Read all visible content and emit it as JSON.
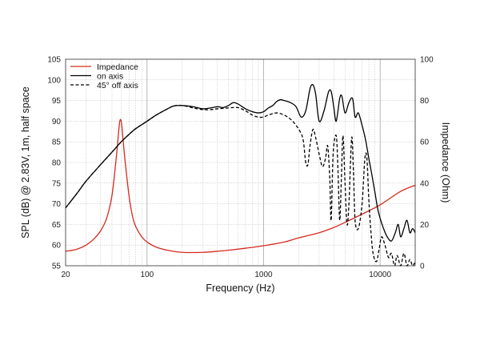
{
  "chart_data": {
    "type": "line",
    "title": "",
    "xlabel": "Frequency (Hz)",
    "ylabel": "SPL (dB) @ 2.83V, 1m, half space",
    "y2label": "Impedance (Ohm)",
    "xscale": "log",
    "xlim": [
      20,
      20000
    ],
    "ylim": [
      55,
      105
    ],
    "y2lim": [
      0,
      100
    ],
    "grid": true,
    "legend_position": "top-left",
    "x_tick_labels": [
      "20",
      "100",
      "1000",
      "10000"
    ],
    "y_tick_labels": [
      "55",
      "60",
      "65",
      "70",
      "75",
      "80",
      "85",
      "90",
      "95",
      "100",
      "105"
    ],
    "y2_tick_labels": [
      "0",
      "20",
      "40",
      "60",
      "80",
      "100"
    ],
    "series": [
      {
        "name": "Impedance",
        "axis": "right",
        "color": "#d42a1e",
        "dash": "solid",
        "points": [
          [
            20,
            7
          ],
          [
            25,
            8
          ],
          [
            30,
            10
          ],
          [
            35,
            13
          ],
          [
            40,
            17
          ],
          [
            45,
            23
          ],
          [
            50,
            34
          ],
          [
            55,
            55
          ],
          [
            58,
            69
          ],
          [
            60,
            70
          ],
          [
            62,
            62
          ],
          [
            65,
            50
          ],
          [
            70,
            34
          ],
          [
            75,
            24
          ],
          [
            80,
            19
          ],
          [
            90,
            14
          ],
          [
            100,
            11.5
          ],
          [
            120,
            9
          ],
          [
            150,
            7.5
          ],
          [
            200,
            6.5
          ],
          [
            300,
            6.5
          ],
          [
            400,
            7
          ],
          [
            500,
            7.5
          ],
          [
            700,
            8.5
          ],
          [
            1000,
            9.7
          ],
          [
            1500,
            11.5
          ],
          [
            2000,
            13.5
          ],
          [
            3000,
            16
          ],
          [
            4000,
            18.5
          ],
          [
            5000,
            21
          ],
          [
            7000,
            25
          ],
          [
            10000,
            29.5
          ],
          [
            15000,
            36
          ],
          [
            20000,
            39
          ]
        ]
      },
      {
        "name": "on axis",
        "axis": "left",
        "color": "#000000",
        "dash": "solid",
        "points": [
          [
            20,
            69
          ],
          [
            25,
            72.5
          ],
          [
            30,
            75.5
          ],
          [
            40,
            79.5
          ],
          [
            50,
            82.5
          ],
          [
            60,
            85
          ],
          [
            70,
            86.8
          ],
          [
            80,
            88.2
          ],
          [
            100,
            90
          ],
          [
            120,
            91.5
          ],
          [
            150,
            93
          ],
          [
            170,
            93.7
          ],
          [
            200,
            93.8
          ],
          [
            250,
            93.5
          ],
          [
            300,
            93
          ],
          [
            350,
            93.2
          ],
          [
            400,
            93.5
          ],
          [
            450,
            93.3
          ],
          [
            500,
            93.8
          ],
          [
            550,
            94.5
          ],
          [
            600,
            94.2
          ],
          [
            700,
            93
          ],
          [
            800,
            92.3
          ],
          [
            900,
            92
          ],
          [
            1000,
            92.3
          ],
          [
            1100,
            93.2
          ],
          [
            1200,
            93.8
          ],
          [
            1300,
            94.8
          ],
          [
            1400,
            95.2
          ],
          [
            1500,
            95
          ],
          [
            1700,
            94.5
          ],
          [
            1900,
            93.5
          ],
          [
            2100,
            91
          ],
          [
            2300,
            92.5
          ],
          [
            2500,
            97.8
          ],
          [
            2650,
            98.8
          ],
          [
            2800,
            96.5
          ],
          [
            3000,
            90
          ],
          [
            3300,
            92.5
          ],
          [
            3600,
            97
          ],
          [
            3800,
            97.2
          ],
          [
            4000,
            93.5
          ],
          [
            4200,
            90
          ],
          [
            4500,
            95.5
          ],
          [
            4700,
            96
          ],
          [
            5000,
            92
          ],
          [
            5400,
            94.5
          ],
          [
            5800,
            95.5
          ],
          [
            6100,
            91
          ],
          [
            6500,
            92
          ],
          [
            7000,
            89
          ],
          [
            7500,
            85.5
          ],
          [
            8000,
            81
          ],
          [
            8500,
            77
          ],
          [
            9000,
            73
          ],
          [
            9500,
            69
          ],
          [
            10000,
            66.5
          ],
          [
            10700,
            64
          ],
          [
            11500,
            62
          ],
          [
            12500,
            61
          ],
          [
            13500,
            63
          ],
          [
            14300,
            65
          ],
          [
            15000,
            62
          ],
          [
            16000,
            64
          ],
          [
            17000,
            66
          ],
          [
            18000,
            63
          ],
          [
            19000,
            64
          ],
          [
            20000,
            63
          ]
        ]
      },
      {
        "name": "45° off axis",
        "axis": "left",
        "color": "#000000",
        "dash": "dashed",
        "points": [
          [
            20,
            69
          ],
          [
            25,
            72.5
          ],
          [
            30,
            75.5
          ],
          [
            40,
            79.5
          ],
          [
            50,
            82.5
          ],
          [
            60,
            85
          ],
          [
            70,
            86.8
          ],
          [
            80,
            88.2
          ],
          [
            100,
            90
          ],
          [
            120,
            91.5
          ],
          [
            150,
            93
          ],
          [
            170,
            93.7
          ],
          [
            200,
            93.8
          ],
          [
            250,
            93.2
          ],
          [
            300,
            92.8
          ],
          [
            350,
            92.8
          ],
          [
            400,
            93
          ],
          [
            500,
            93.2
          ],
          [
            600,
            93.3
          ],
          [
            700,
            92.5
          ],
          [
            800,
            91.5
          ],
          [
            900,
            91
          ],
          [
            1000,
            91
          ],
          [
            1100,
            91.5
          ],
          [
            1300,
            92
          ],
          [
            1500,
            91.5
          ],
          [
            1700,
            90.5
          ],
          [
            1900,
            89
          ],
          [
            2100,
            87
          ],
          [
            2200,
            85
          ],
          [
            2300,
            80
          ],
          [
            2400,
            79.5
          ],
          [
            2500,
            84
          ],
          [
            2650,
            88
          ],
          [
            2800,
            86
          ],
          [
            3000,
            82
          ],
          [
            3200,
            79
          ],
          [
            3400,
            81
          ],
          [
            3550,
            84
          ],
          [
            3700,
            76
          ],
          [
            3800,
            66
          ],
          [
            3950,
            82
          ],
          [
            4200,
            86.5
          ],
          [
            4350,
            78
          ],
          [
            4500,
            66
          ],
          [
            4650,
            76
          ],
          [
            4800,
            86.5
          ],
          [
            5000,
            75
          ],
          [
            5200,
            65
          ],
          [
            5400,
            70
          ],
          [
            5700,
            86
          ],
          [
            5900,
            78
          ],
          [
            6100,
            66
          ],
          [
            6500,
            64
          ],
          [
            7000,
            70
          ],
          [
            7400,
            81
          ],
          [
            7700,
            81
          ],
          [
            8000,
            71
          ],
          [
            8300,
            64
          ],
          [
            8700,
            58
          ],
          [
            9300,
            56
          ],
          [
            9800,
            59
          ],
          [
            10300,
            62
          ],
          [
            11000,
            60
          ],
          [
            11800,
            57
          ],
          [
            12500,
            58
          ],
          [
            13300,
            55
          ],
          [
            14000,
            57.5
          ],
          [
            15000,
            55
          ],
          [
            16000,
            58
          ],
          [
            17000,
            55
          ],
          [
            18000,
            56.5
          ],
          [
            19000,
            55
          ],
          [
            20000,
            56
          ]
        ]
      }
    ]
  }
}
